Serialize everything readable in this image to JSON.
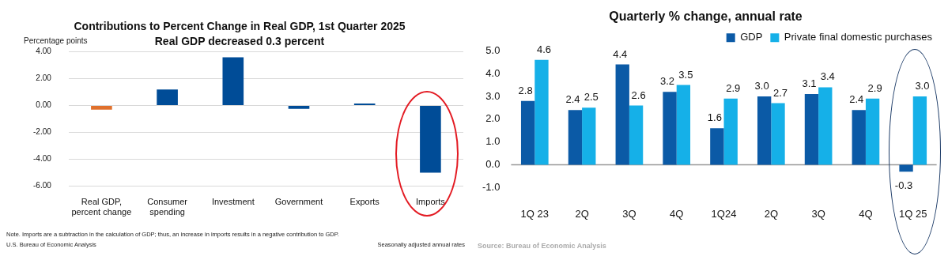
{
  "chart_data": [
    {
      "type": "bar",
      "title": "Contributions to Percent Change in Real GDP, 1st Quarter 2025",
      "subtitle": "Real GDP decreased 0.3 percent",
      "ylabel": "Percentage points",
      "categories": [
        "Real GDP, percent change",
        "Consumer spending",
        "Investment",
        "Government",
        "Exports",
        "Imports"
      ],
      "values": [
        -0.3,
        1.2,
        3.6,
        -0.25,
        0.15,
        -5.0
      ],
      "colors": [
        "#e0702c",
        "#004c97",
        "#004c97",
        "#004c97",
        "#004c97",
        "#004c97"
      ],
      "ylim": [
        -6,
        4
      ],
      "yticks": [
        {
          "value": -6,
          "label": "-6.00"
        },
        {
          "value": -4,
          "label": "-4.00"
        },
        {
          "value": -2,
          "label": "-2.00"
        },
        {
          "value": 0,
          "label": "0.00"
        },
        {
          "value": 2,
          "label": "2.00"
        },
        {
          "value": 4,
          "label": "4.00"
        }
      ],
      "grid": "y",
      "annotations": [
        "Note. Imports are a subtraction in the calculation of GDP; thus, an increase in imports results in a negative contribution to GDP.",
        "U.S. Bureau of Economic Analysis",
        "Seasonally adjusted annual rates"
      ]
    },
    {
      "type": "bar",
      "title": "Quarterly % change, annual rate",
      "categories": [
        "1Q 23",
        "2Q",
        "3Q",
        "4Q",
        "1Q24",
        "2Q",
        "3Q",
        "4Q",
        "1Q 25"
      ],
      "series": [
        {
          "name": "GDP",
          "color": "#0b5aa6",
          "values": [
            2.8,
            2.4,
            4.4,
            3.2,
            1.6,
            3.0,
            3.1,
            2.4,
            -0.3
          ],
          "value_labels": [
            "2.8",
            "2.4",
            "4.4",
            "3.2",
            "1.6",
            "3.0",
            "3.1",
            "2.4",
            "-0.3"
          ]
        },
        {
          "name": "Private final domestic purchases",
          "color": "#15b0e8",
          "values": [
            4.6,
            2.5,
            2.6,
            3.5,
            2.9,
            2.7,
            3.4,
            2.9,
            3.0
          ],
          "value_labels": [
            "4.6",
            "2.5",
            "2.6",
            "3.5",
            "2.9",
            "2.7",
            "3.4",
            "2.9",
            "3.0"
          ]
        }
      ],
      "ylim": [
        -1,
        5
      ],
      "yticks": [
        {
          "value": -1,
          "label": "-1.0"
        },
        {
          "value": 0,
          "label": "0.0"
        },
        {
          "value": 1,
          "label": "1.0"
        },
        {
          "value": 2,
          "label": "2.0"
        },
        {
          "value": 3,
          "label": "3.0"
        },
        {
          "value": 4,
          "label": "4.0"
        },
        {
          "value": 5,
          "label": "5.0"
        }
      ],
      "grid": false,
      "legend": "top right",
      "ref_lines": [
        {
          "axis": "y",
          "value": 0,
          "color": "#999999"
        }
      ],
      "annotations": [
        "Source: Bureau of Economic Analysis"
      ]
    }
  ]
}
